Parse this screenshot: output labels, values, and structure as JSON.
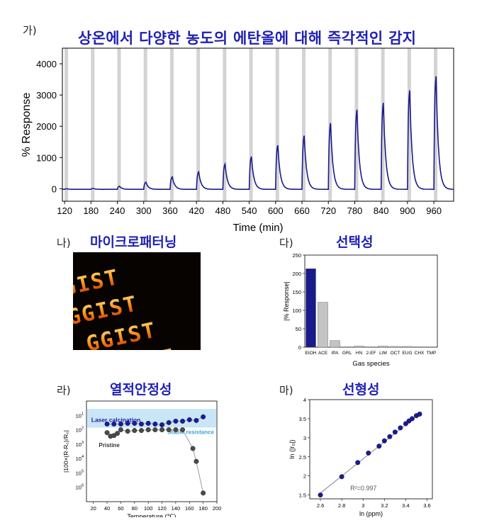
{
  "panels": {
    "ga": {
      "label": "가)",
      "title": "상온에서 다양한 농도의 에탄올에 대해 즉각적인 감지",
      "chart_data": {
        "type": "line",
        "xlabel": "Time (min)",
        "ylabel": "% Response",
        "xlim": [
          115,
          1005
        ],
        "ylim": [
          -400,
          4500
        ],
        "xticks": [
          120,
          180,
          240,
          300,
          360,
          420,
          480,
          540,
          600,
          660,
          720,
          780,
          840,
          900,
          960
        ],
        "yticks": [
          0,
          1000,
          2000,
          3000,
          4000
        ],
        "exposure_windows_start": [
          120,
          180,
          240,
          300,
          360,
          420,
          480,
          540,
          600,
          660,
          720,
          780,
          840,
          900,
          960
        ],
        "exposure_window_minutes": 8,
        "peaks": [
          {
            "t": 125,
            "v": 0
          },
          {
            "t": 185,
            "v": 10
          },
          {
            "t": 245,
            "v": 80
          },
          {
            "t": 305,
            "v": 210
          },
          {
            "t": 365,
            "v": 380
          },
          {
            "t": 425,
            "v": 540
          },
          {
            "t": 485,
            "v": 790
          },
          {
            "t": 545,
            "v": 1030
          },
          {
            "t": 605,
            "v": 1390
          },
          {
            "t": 665,
            "v": 1700
          },
          {
            "t": 725,
            "v": 2100
          },
          {
            "t": 785,
            "v": 2530
          },
          {
            "t": 845,
            "v": 2750
          },
          {
            "t": 905,
            "v": 3150
          },
          {
            "t": 965,
            "v": 3600
          }
        ],
        "baseline": -20,
        "line_color": "#1a1a8c",
        "window_color": "#d3d3d3"
      }
    },
    "na": {
      "label": "나)",
      "title": "마이크로패터닝",
      "pattern_text": "GGIST"
    },
    "da": {
      "label": "다)",
      "title": "선택성",
      "chart_data": {
        "type": "bar",
        "xlabel": "Gas species",
        "ylabel": "|% Response|",
        "ylim": [
          0,
          250
        ],
        "yticks": [
          0,
          50,
          100,
          150,
          200,
          250
        ],
        "categories": [
          "EtOH",
          "ACE",
          "IPA",
          "GRL",
          "HN",
          "2-EF",
          "LIM",
          "OCT",
          "EUG",
          "CHX",
          "TMP"
        ],
        "values": [
          213,
          122,
          18,
          1,
          3,
          1,
          3,
          2,
          2,
          1,
          1
        ],
        "bar_colors": [
          "#1a1a8c",
          "#c4c4c4",
          "#c4c4c4",
          "#c4c4c4",
          "#c4c4c4",
          "#c4c4c4",
          "#c4c4c4",
          "#c4c4c4",
          "#c4c4c4",
          "#c4c4c4",
          "#c4c4c4"
        ]
      }
    },
    "ra": {
      "label": "라)",
      "title": "열적안정성",
      "chart_data": {
        "type": "scatter",
        "xlabel": "Temperature (℃)",
        "ylabel": "|100×(R-R₀)/R₀|",
        "xlim": [
          10,
          200
        ],
        "xticks": [
          20,
          40,
          60,
          80,
          100,
          120,
          140,
          160,
          180,
          200
        ],
        "ylog_range": [
          0,
          7
        ],
        "ytick_exponents": [
          1,
          2,
          3,
          4,
          5,
          6
        ],
        "band_label": "Laser calcination",
        "stable_label": "Stable resistance",
        "pristine_label": "Pristine",
        "series": [
          {
            "name": "Laser calcination",
            "color": "#1a1a9c",
            "x": [
              40,
              50,
              60,
              70,
              80,
              90,
              100,
              110,
              120,
              130,
              140,
              150,
              160,
              170,
              180
            ],
            "log10y": [
              1.6,
              1.6,
              1.6,
              1.55,
              1.55,
              1.6,
              1.55,
              1.6,
              1.65,
              1.5,
              1.4,
              1.4,
              1.3,
              1.35,
              1.1
            ]
          },
          {
            "name": "Pristine",
            "color": "#4a4a4a",
            "x": [
              40,
              45,
              50,
              55,
              60,
              70,
              80,
              90,
              100,
              110,
              120,
              130,
              140,
              150,
              165,
              170,
              180
            ],
            "log10y": [
              2.2,
              2.45,
              2.4,
              2.25,
              2.0,
              2.1,
              2.05,
              2.05,
              2.0,
              2.0,
              2.0,
              2.0,
              2.0,
              2.0,
              3.3,
              4.2,
              6.4
            ]
          }
        ]
      }
    },
    "ma": {
      "label": "마)",
      "title": "선형성",
      "chart_data": {
        "type": "scatter",
        "xlabel": "ln (ppm)",
        "ylabel": "ln (|r₀|)",
        "xlim": [
          2.5,
          3.65
        ],
        "ylim": [
          1.4,
          4.0
        ],
        "xticks": [
          2.6,
          2.8,
          3.0,
          3.2,
          3.4,
          3.6
        ],
        "yticks": [
          1.5,
          2.0,
          2.5,
          3.0,
          3.5,
          4.0
        ],
        "fit_label": "R²=0.997",
        "x": [
          2.6,
          2.8,
          2.95,
          3.05,
          3.15,
          3.2,
          3.25,
          3.3,
          3.35,
          3.4,
          3.43,
          3.46,
          3.5,
          3.53
        ],
        "y": [
          1.5,
          1.98,
          2.35,
          2.6,
          2.78,
          2.92,
          3.03,
          3.15,
          3.26,
          3.37,
          3.44,
          3.5,
          3.58,
          3.62
        ],
        "fit_line": {
          "x": [
            2.6,
            3.55
          ],
          "y": [
            1.55,
            3.68
          ]
        },
        "point_color": "#1a1a9c"
      }
    }
  }
}
